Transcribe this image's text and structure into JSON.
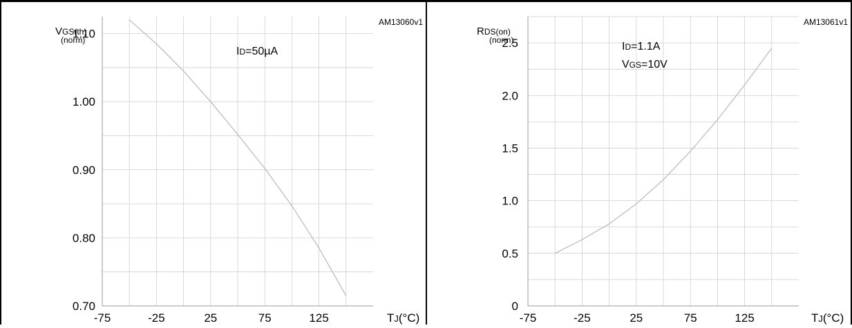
{
  "chart_data": [
    {
      "type": "line",
      "figure_id": "AM13060v1",
      "ylabel_main": "V",
      "ylabel_sub": "GS(th)",
      "ylabel_norm": "(norm)",
      "xlabel_main": "T",
      "xlabel_sub": "J",
      "xlabel_unit": "(°C)",
      "condition_lines": [
        {
          "main": "I",
          "sub": "D",
          "rest": "=50µA"
        }
      ],
      "xlim": [
        -75,
        175
      ],
      "ylim": [
        0.7,
        1.125
      ],
      "xticks": [
        -75,
        -25,
        25,
        75,
        125
      ],
      "xtick_labels": [
        "-75",
        "-25",
        "25",
        "75",
        "125"
      ],
      "yticks": [
        0.7,
        0.8,
        0.9,
        1.0,
        1.1
      ],
      "ytick_labels": [
        "0.70",
        "0.80",
        "0.90",
        "1.00",
        "1.10"
      ],
      "grid": true,
      "series": [
        {
          "x": [
            -50,
            -25,
            0,
            25,
            50,
            75,
            100,
            125,
            150
          ],
          "y": [
            1.12,
            1.085,
            1.045,
            1.0,
            0.952,
            0.902,
            0.847,
            0.785,
            0.715
          ]
        }
      ]
    },
    {
      "type": "line",
      "figure_id": "AM13061v1",
      "ylabel_main": "R",
      "ylabel_sub": "DS(on)",
      "ylabel_norm": "(norm)",
      "xlabel_main": "T",
      "xlabel_sub": "J",
      "xlabel_unit": "(°C)",
      "condition_lines": [
        {
          "main": "I",
          "sub": "D",
          "rest": "=1.1A"
        },
        {
          "main": "V",
          "sub": "GS",
          "rest": "=10V"
        }
      ],
      "xlim": [
        -75,
        175
      ],
      "ylim": [
        0,
        2.75
      ],
      "xticks": [
        -75,
        -25,
        25,
        75,
        125
      ],
      "xtick_labels": [
        "-75",
        "-25",
        "25",
        "75",
        "125"
      ],
      "yticks": [
        0,
        0.5,
        1.0,
        1.5,
        2.0,
        2.5
      ],
      "ytick_labels": [
        "0",
        "0.5",
        "1.0",
        "1.5",
        "2.0",
        "2.5"
      ],
      "grid": true,
      "series": [
        {
          "x": [
            -50,
            -25,
            0,
            25,
            50,
            75,
            100,
            125,
            150
          ],
          "y": [
            0.5,
            0.63,
            0.78,
            0.97,
            1.2,
            1.47,
            1.77,
            2.1,
            2.45
          ]
        }
      ]
    }
  ]
}
